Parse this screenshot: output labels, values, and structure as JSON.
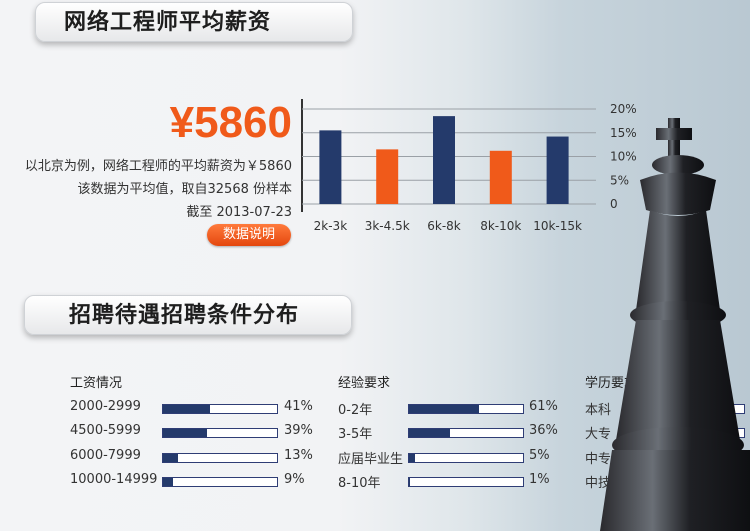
{
  "banner1": "网络工程师平均薪资",
  "banner2": "招聘待遇招聘条件分布",
  "price": "¥5860",
  "desc_lines": [
    "以北京为例，网络工程师的平均薪资为￥5860",
    "该数据为平均值，取自32568 份样本",
    "截至 2013-07-23"
  ],
  "button_label": "数据说明",
  "colors": {
    "navy": "#243a6b",
    "orange": "#f05a1a"
  },
  "chart_data": {
    "type": "bar",
    "categories": [
      "2k-3k",
      "3k-4.5k",
      "6k-8k",
      "8k-10k",
      "10k-15k"
    ],
    "values": [
      15.5,
      11.5,
      18.5,
      11.2,
      14.2
    ],
    "bar_colors": [
      "#243a6b",
      "#f05a1a",
      "#243a6b",
      "#f05a1a",
      "#243a6b"
    ],
    "y_ticks": [
      "0",
      "5%",
      "10%",
      "15%",
      "20%"
    ],
    "ylim": [
      0,
      20
    ],
    "grid": true
  },
  "distribution": [
    {
      "title": "工资情况",
      "rows": [
        {
          "label": "2000-2999",
          "pct": "41%",
          "value": 0.41
        },
        {
          "label": "4500-5999",
          "pct": "39%",
          "value": 0.39
        },
        {
          "label": "6000-7999",
          "pct": "13%",
          "value": 0.13
        },
        {
          "label": "10000-14999",
          "pct": "9%",
          "value": 0.09
        }
      ]
    },
    {
      "title": "经验要求",
      "rows": [
        {
          "label": "0-2年",
          "pct": "61%",
          "value": 0.61
        },
        {
          "label": "3-5年",
          "pct": "36%",
          "value": 0.36
        },
        {
          "label": "应届毕业生",
          "pct": "5%",
          "value": 0.05
        },
        {
          "label": "8-10年",
          "pct": "1%",
          "value": 0.01
        }
      ]
    },
    {
      "title": "学历要求",
      "rows": [
        {
          "label": "本科",
          "value": 0.45
        },
        {
          "label": "大专",
          "value": 0.25
        },
        {
          "label": "中专",
          "value": 0
        },
        {
          "label": "中技",
          "value": 0
        }
      ]
    }
  ]
}
